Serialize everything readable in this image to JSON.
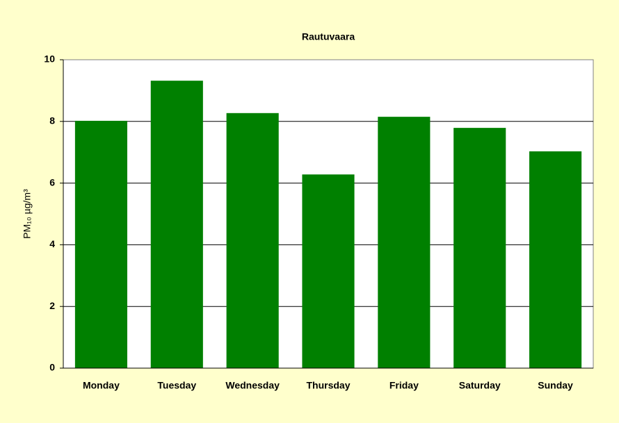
{
  "chart_data": {
    "type": "bar",
    "title": "Rautuvaara",
    "y_label": "PM₁₀ µg/m³",
    "categories": [
      "Monday",
      "Tuesday",
      "Wednesday",
      "Thursday",
      "Friday",
      "Saturday",
      "Sunday"
    ],
    "values": [
      8.02,
      9.32,
      8.27,
      6.28,
      8.15,
      7.79,
      7.03
    ],
    "color": "#008000",
    "ylim": [
      0,
      10
    ],
    "yticks": [
      0,
      2,
      4,
      6,
      8,
      10
    ],
    "grid": true
  }
}
